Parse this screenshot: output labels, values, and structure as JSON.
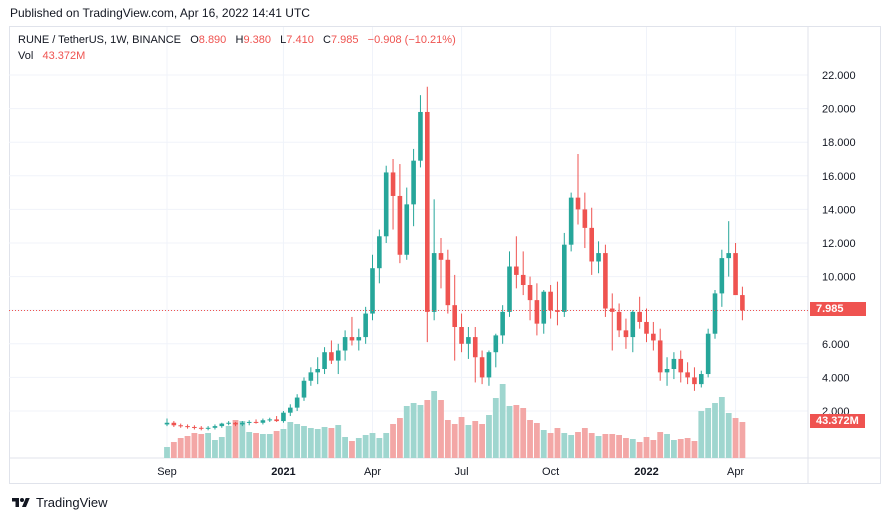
{
  "published": "Published on TradingView.com, Apr 16, 2022 14:41 UTC",
  "legend": {
    "symbol": "RUNE / TetherUS, 1W, BINANCE",
    "o_label": "O",
    "o_value": "8.890",
    "h_label": "H",
    "h_value": "9.380",
    "l_label": "L",
    "l_value": "7.410",
    "c_label": "C",
    "c_value": "7.985",
    "change": "−0.908 (−10.21%)",
    "vol_label": "Vol",
    "vol_value": "43.372M"
  },
  "badges": {
    "price": "7.985",
    "volume": "43.372M"
  },
  "footer": {
    "brand": "TradingView",
    "logo_icon": "tradingview-logo-icon"
  },
  "colors": {
    "up": "#26a69a",
    "down": "#ef5350",
    "vol_up": "#9fd6cf",
    "vol_down": "#f3a7a6",
    "grid": "#f0f3fa",
    "axis_text": "#131722"
  },
  "chart_data": {
    "type": "candlestick",
    "title": "RUNE / TetherUS, 1W, BINANCE",
    "xlabel": "",
    "ylabel": "",
    "ylim": [
      0,
      22
    ],
    "yticks": [
      2,
      4,
      6,
      8,
      10,
      12,
      14,
      16,
      18,
      20,
      22
    ],
    "ytick_labels": [
      "2.000",
      "4.000",
      "6.000",
      "8.000",
      "10.000",
      "12.000",
      "14.000",
      "16.000",
      "18.000",
      "20.000",
      "22.000"
    ],
    "xtick_labels": [
      {
        "label": "Sep",
        "bar_index": 0
      },
      {
        "label": "2021",
        "bar_index": 17
      },
      {
        "label": "Apr",
        "bar_index": 30
      },
      {
        "label": "Jul",
        "bar_index": 43
      },
      {
        "label": "Oct",
        "bar_index": 56
      },
      {
        "label": "2022",
        "bar_index": 70
      },
      {
        "label": "Apr",
        "bar_index": 83
      }
    ],
    "current_price": 7.985,
    "grid": true,
    "candles": [
      [
        1.2,
        1.55,
        1.1,
        1.3
      ],
      [
        1.3,
        1.4,
        1.05,
        1.15
      ],
      [
        1.15,
        1.25,
        1.0,
        1.1
      ],
      [
        1.1,
        1.2,
        0.95,
        1.05
      ],
      [
        1.05,
        1.15,
        0.9,
        1.0
      ],
      [
        1.0,
        1.1,
        0.85,
        0.95
      ],
      [
        0.95,
        1.1,
        0.85,
        1.0
      ],
      [
        1.0,
        1.2,
        0.9,
        1.1
      ],
      [
        1.1,
        1.3,
        1.0,
        1.25
      ],
      [
        1.25,
        1.4,
        1.15,
        1.3
      ],
      [
        1.3,
        1.35,
        1.1,
        1.2
      ],
      [
        1.2,
        1.4,
        1.1,
        1.3
      ],
      [
        1.3,
        1.45,
        1.15,
        1.35
      ],
      [
        1.35,
        1.5,
        1.25,
        1.3
      ],
      [
        1.3,
        1.55,
        1.2,
        1.45
      ],
      [
        1.45,
        1.6,
        1.35,
        1.5
      ],
      [
        1.5,
        1.7,
        1.35,
        1.4
      ],
      [
        1.4,
        2.0,
        1.3,
        1.9
      ],
      [
        1.9,
        2.4,
        1.7,
        2.2
      ],
      [
        2.2,
        3.0,
        2.0,
        2.8
      ],
      [
        2.8,
        4.0,
        2.6,
        3.8
      ],
      [
        3.8,
        4.6,
        3.5,
        4.3
      ],
      [
        4.3,
        5.2,
        3.6,
        4.5
      ],
      [
        4.5,
        5.8,
        4.2,
        5.5
      ],
      [
        5.5,
        6.2,
        4.8,
        5.0
      ],
      [
        5.0,
        6.0,
        4.2,
        5.6
      ],
      [
        5.6,
        6.8,
        5.0,
        6.4
      ],
      [
        6.4,
        7.6,
        5.9,
        6.2
      ],
      [
        6.2,
        6.9,
        5.6,
        6.4
      ],
      [
        6.4,
        8.2,
        6.0,
        7.8
      ],
      [
        7.8,
        11.3,
        7.4,
        10.5
      ],
      [
        10.5,
        12.8,
        9.6,
        12.4
      ],
      [
        12.4,
        16.6,
        12.0,
        16.2
      ],
      [
        16.2,
        17.0,
        12.8,
        14.8
      ],
      [
        14.8,
        16.7,
        10.8,
        11.3
      ],
      [
        11.3,
        15.3,
        11.0,
        14.3
      ],
      [
        14.3,
        17.6,
        13.0,
        16.9
      ],
      [
        16.9,
        20.8,
        16.5,
        19.8
      ],
      [
        19.8,
        21.3,
        6.1,
        7.9
      ],
      [
        7.9,
        14.6,
        7.4,
        11.4
      ],
      [
        11.4,
        12.3,
        9.3,
        11.0
      ],
      [
        11.0,
        11.6,
        7.8,
        8.3
      ],
      [
        8.3,
        10.1,
        5.0,
        7.0
      ],
      [
        7.0,
        7.8,
        5.5,
        6.0
      ],
      [
        6.0,
        7.0,
        5.1,
        6.4
      ],
      [
        6.4,
        7.0,
        3.7,
        5.2
      ],
      [
        5.2,
        5.6,
        3.6,
        4.0
      ],
      [
        4.0,
        5.6,
        3.5,
        5.5
      ],
      [
        5.5,
        6.6,
        4.6,
        6.5
      ],
      [
        6.5,
        8.3,
        6.0,
        7.9
      ],
      [
        7.9,
        11.5,
        7.6,
        10.6
      ],
      [
        10.6,
        12.4,
        9.3,
        10.1
      ],
      [
        10.1,
        11.5,
        8.9,
        9.5
      ],
      [
        9.5,
        10.0,
        7.4,
        8.6
      ],
      [
        8.6,
        9.6,
        6.5,
        7.2
      ],
      [
        7.2,
        9.2,
        6.6,
        9.1
      ],
      [
        9.1,
        9.5,
        7.5,
        8.0
      ],
      [
        8.0,
        9.7,
        7.1,
        7.9
      ],
      [
        7.9,
        12.6,
        7.6,
        11.9
      ],
      [
        11.9,
        15.0,
        11.5,
        14.7
      ],
      [
        14.7,
        17.3,
        13.1,
        14.0
      ],
      [
        14.0,
        15.0,
        11.7,
        12.9
      ],
      [
        12.9,
        14.1,
        10.1,
        10.9
      ],
      [
        10.9,
        12.1,
        10.2,
        11.4
      ],
      [
        11.4,
        11.9,
        7.6,
        8.1
      ],
      [
        8.1,
        9.0,
        5.6,
        7.9
      ],
      [
        7.9,
        8.4,
        6.4,
        6.8
      ],
      [
        6.8,
        7.5,
        5.7,
        6.4
      ],
      [
        6.4,
        8.0,
        5.5,
        7.9
      ],
      [
        7.9,
        8.8,
        6.9,
        7.3
      ],
      [
        7.3,
        8.1,
        6.1,
        6.6
      ],
      [
        6.6,
        7.3,
        5.6,
        6.2
      ],
      [
        6.2,
        6.9,
        3.8,
        4.3
      ],
      [
        4.3,
        5.2,
        3.5,
        4.5
      ],
      [
        4.5,
        5.5,
        3.9,
        5.1
      ],
      [
        5.1,
        5.6,
        3.7,
        4.3
      ],
      [
        4.3,
        4.9,
        3.6,
        4.0
      ],
      [
        4.0,
        4.6,
        3.2,
        3.6
      ],
      [
        3.6,
        4.4,
        3.4,
        4.2
      ],
      [
        4.2,
        6.9,
        4.0,
        6.6
      ],
      [
        6.6,
        9.2,
        6.3,
        9.0
      ],
      [
        9.0,
        11.6,
        8.2,
        11.1
      ],
      [
        11.1,
        13.3,
        10.0,
        11.4
      ],
      [
        11.4,
        12.0,
        9.1,
        8.9
      ],
      [
        8.9,
        9.4,
        7.4,
        7.985
      ]
    ],
    "volume_scale_note": "",
    "volumes": [
      11,
      16,
      20,
      22,
      25,
      24,
      25,
      18,
      21,
      32,
      38,
      37,
      26,
      25,
      24,
      24,
      27,
      29,
      36,
      34,
      32,
      30,
      29,
      31,
      30,
      33,
      21,
      17,
      20,
      23,
      25,
      20,
      25,
      34,
      40,
      52,
      55,
      53,
      58,
      67,
      58,
      38,
      34,
      41,
      33,
      37,
      34,
      43,
      60,
      74,
      52,
      53,
      50,
      38,
      35,
      28,
      25,
      30,
      25,
      23,
      26,
      30,
      25,
      22,
      24,
      24,
      23,
      20,
      19,
      16,
      21,
      18,
      26,
      24,
      18,
      19,
      20,
      17,
      47,
      50,
      55,
      61,
      45,
      40,
      36
    ]
  }
}
